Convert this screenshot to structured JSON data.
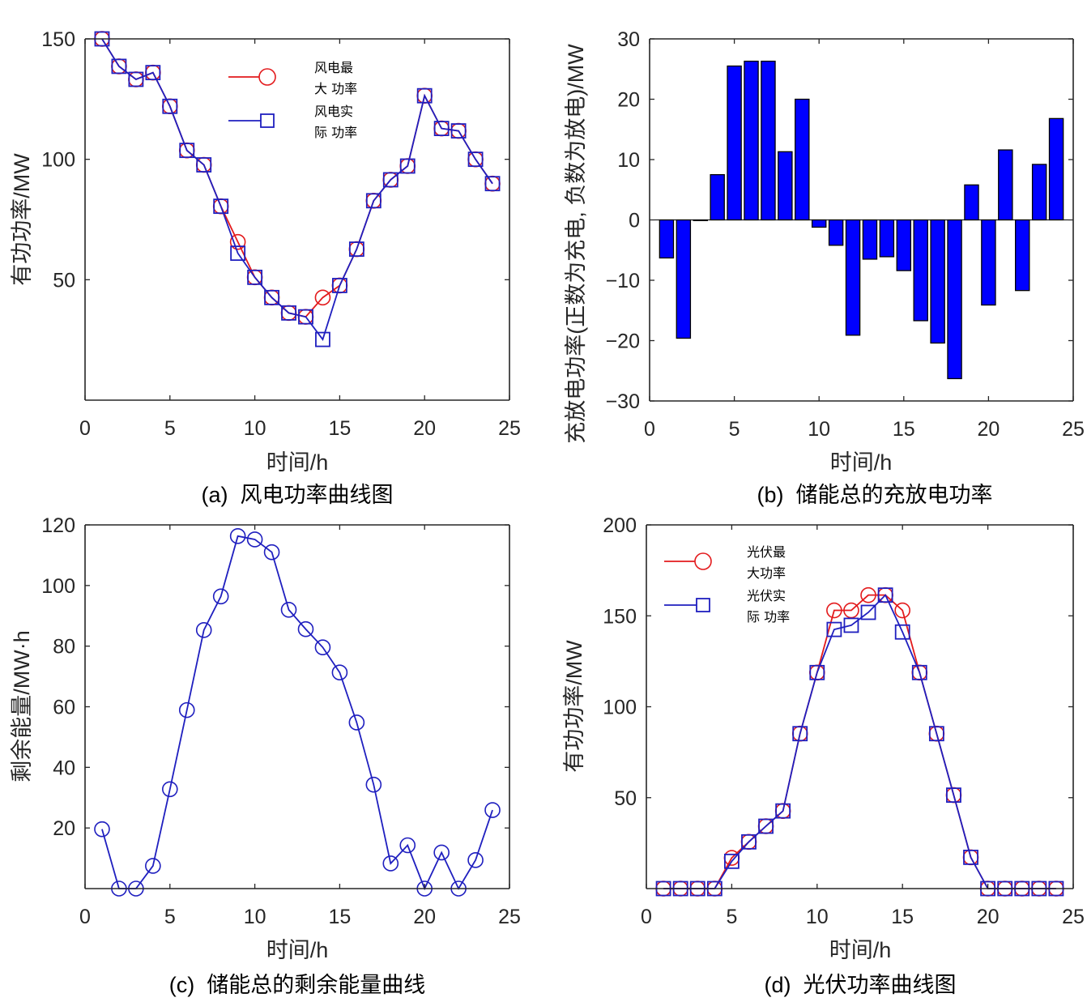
{
  "figure": {
    "panels": [
      "a",
      "b",
      "c",
      "d"
    ]
  },
  "chart_data": [
    {
      "id": "a",
      "type": "line",
      "caption": "(a)  风电功率曲线图",
      "title": "",
      "xlabel": "时间/h",
      "ylabel": "有功功率/MW",
      "xlim": [
        0,
        25
      ],
      "ylim": [
        0,
        150
      ],
      "xticks": [
        0,
        5,
        10,
        15,
        20,
        25
      ],
      "yticks": [
        50,
        100,
        150
      ],
      "grid": false,
      "legend_position": "top-center",
      "x": [
        1,
        2,
        3,
        4,
        5,
        6,
        7,
        8,
        9,
        10,
        11,
        12,
        13,
        14,
        15,
        16,
        17,
        18,
        19,
        20,
        21,
        22,
        23,
        24
      ],
      "series": [
        {
          "name": "风电最大功率",
          "legend_lines": [
            "风电最",
            "大 功率"
          ],
          "color": "#e31a1c",
          "marker": "circle",
          "values": [
            150,
            138.6,
            133.2,
            136,
            122,
            103.7,
            97.7,
            80.5,
            65.7,
            51,
            42.6,
            36.2,
            34.6,
            42.6,
            47.6,
            62.7,
            82.8,
            91.5,
            97.2,
            126.4,
            112.8,
            111.8,
            100,
            89.9
          ]
        },
        {
          "name": "风电实际功率",
          "legend_lines": [
            "风电实",
            "际 功率"
          ],
          "color": "#1f1fbf",
          "marker": "square",
          "values": [
            150,
            138.6,
            133.2,
            136,
            122,
            103.7,
            97.7,
            80.5,
            61,
            51,
            42.6,
            36.2,
            34.6,
            25.2,
            47.6,
            62.7,
            82.8,
            91.5,
            97.2,
            126.4,
            112.8,
            111.8,
            100,
            89.9
          ]
        }
      ]
    },
    {
      "id": "b",
      "type": "bar",
      "caption": "(b)  储能总的充放电功率",
      "title": "",
      "xlabel": "时间/h",
      "ylabel": "充放电功率(正数为充电, 负数为放电)/MW",
      "xlim": [
        0,
        25
      ],
      "ylim": [
        -30,
        30
      ],
      "xticks": [
        0,
        5,
        10,
        15,
        20,
        25
      ],
      "yticks": [
        -30,
        -20,
        -10,
        0,
        10,
        20,
        30
      ],
      "grid": false,
      "bar_color": "#0000ff",
      "categories": [
        1,
        2,
        3,
        4,
        5,
        6,
        7,
        8,
        9,
        10,
        11,
        12,
        13,
        14,
        15,
        16,
        17,
        18,
        19,
        20,
        21,
        22,
        23,
        24
      ],
      "values": [
        -6.3,
        -19.6,
        0,
        7.5,
        25.5,
        26.3,
        26.3,
        11.3,
        20,
        -1.2,
        -4.2,
        -19.1,
        -6.5,
        -6.1,
        -8.4,
        -16.7,
        -20.4,
        -26.3,
        5.8,
        -14.1,
        11.6,
        -11.7,
        9.2,
        16.8
      ]
    },
    {
      "id": "c",
      "type": "line",
      "caption": "(c)  储能总的剩余能量曲线",
      "title": "",
      "xlabel": "时间/h",
      "ylabel": "剩余能量/MW·h",
      "xlim": [
        0,
        25
      ],
      "ylim": [
        0,
        120
      ],
      "xticks": [
        0,
        5,
        10,
        15,
        20,
        25
      ],
      "yticks": [
        20,
        40,
        60,
        80,
        100,
        120
      ],
      "grid": false,
      "x": [
        1,
        2,
        3,
        4,
        5,
        6,
        7,
        8,
        9,
        10,
        11,
        12,
        13,
        14,
        15,
        16,
        17,
        18,
        19,
        20,
        21,
        22,
        23,
        24
      ],
      "series": [
        {
          "name": "剩余能量",
          "color": "#1f1fbf",
          "marker": "circle",
          "values": [
            19.6,
            0,
            0,
            7.5,
            32.8,
            58.9,
            85.3,
            96.4,
            116.3,
            115.2,
            111,
            92,
            85.6,
            79.6,
            71.3,
            54.8,
            34.3,
            8.3,
            14.3,
            0,
            11.9,
            0,
            9.4,
            25.9
          ]
        }
      ]
    },
    {
      "id": "d",
      "type": "line",
      "caption": "(d)  光伏功率曲线图",
      "title": "",
      "xlabel": "时间/h",
      "ylabel": "有功功率/MW",
      "xlim": [
        0,
        25
      ],
      "ylim": [
        0,
        200
      ],
      "xticks": [
        0,
        5,
        10,
        15,
        20,
        25
      ],
      "yticks": [
        50,
        100,
        150,
        200
      ],
      "grid": false,
      "legend_position": "top-left",
      "x": [
        1,
        2,
        3,
        4,
        5,
        6,
        7,
        8,
        9,
        10,
        11,
        12,
        13,
        14,
        15,
        16,
        17,
        18,
        19,
        20,
        21,
        22,
        23,
        24
      ],
      "series": [
        {
          "name": "光伏最大功率",
          "legend_lines": [
            "光伏最",
            "大功率"
          ],
          "color": "#e31a1c",
          "marker": "circle",
          "values": [
            0,
            0,
            0,
            0,
            16.9,
            25.7,
            34.3,
            42.7,
            85.2,
            118.8,
            153,
            153,
            161.4,
            161.4,
            153,
            118.8,
            85.2,
            51.4,
            17.2,
            0,
            0,
            0,
            0,
            0
          ]
        },
        {
          "name": "光伏实际功率",
          "legend_lines": [
            "光伏实",
            "际 功率"
          ],
          "color": "#1f1fbf",
          "marker": "square",
          "values": [
            0,
            0,
            0,
            0,
            15,
            25.7,
            34.3,
            42.7,
            85.2,
            118.8,
            142.5,
            144.8,
            151.9,
            161.4,
            141.1,
            118.8,
            85.2,
            51.4,
            17.2,
            0,
            0,
            0,
            0,
            0
          ]
        }
      ]
    }
  ]
}
